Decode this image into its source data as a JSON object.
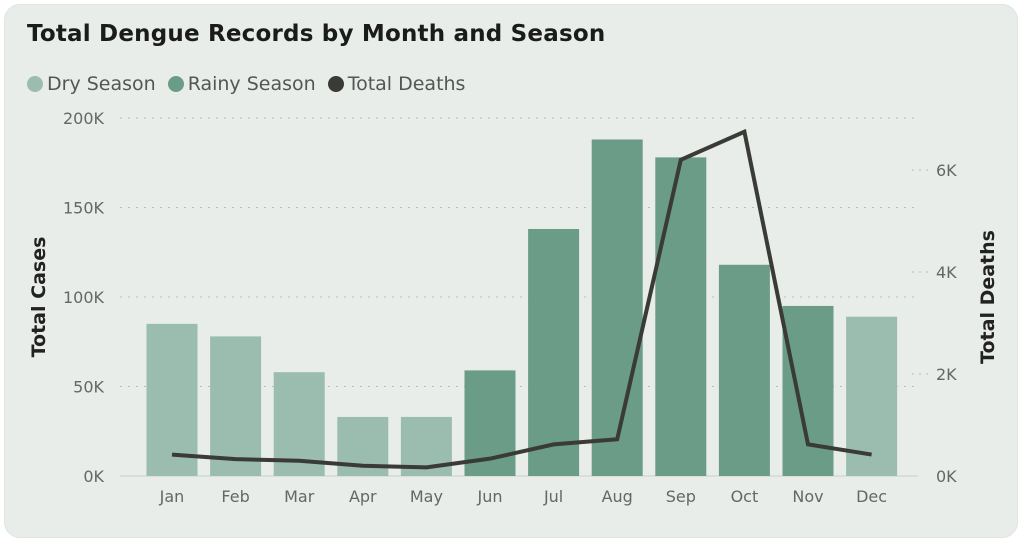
{
  "chart_data": {
    "type": "bar",
    "title": "Total Dengue Records by Month and Season",
    "categories": [
      "Jan",
      "Feb",
      "Mar",
      "Apr",
      "May",
      "Jun",
      "Jul",
      "Aug",
      "Sep",
      "Oct",
      "Nov",
      "Dec"
    ],
    "values": [
      85000,
      78000,
      58000,
      33000,
      33000,
      59000,
      138000,
      188000,
      178000,
      118000,
      95000,
      89000
    ],
    "season": [
      "Dry Season",
      "Dry Season",
      "Dry Season",
      "Dry Season",
      "Dry Season",
      "Rainy Season",
      "Rainy Season",
      "Rainy Season",
      "Rainy Season",
      "Rainy Season",
      "Rainy Season",
      "Dry Season"
    ],
    "legend": [
      {
        "name": "Dry Season",
        "color": "#9bbdaf"
      },
      {
        "name": "Rainy Season",
        "color": "#6a9c88"
      },
      {
        "name": "Total Deaths",
        "color": "#3a3a36"
      }
    ],
    "line_series": {
      "name": "Total Deaths",
      "values": [
        420,
        330,
        300,
        200,
        170,
        340,
        620,
        720,
        6200,
        6750,
        620,
        420
      ]
    },
    "ylabel": "Total Cases",
    "y2label": "Total Deaths",
    "ylim": [
      0,
      200000
    ],
    "y2lim": [
      0,
      7000
    ],
    "yticks": [
      0,
      50000,
      100000,
      150000,
      200000
    ],
    "ytick_labels": [
      "0K",
      "50K",
      "100K",
      "150K",
      "200K"
    ],
    "y2ticks": [
      0,
      2000,
      4000,
      6000
    ],
    "y2tick_labels": [
      "0K",
      "2K",
      "4K",
      "6K"
    ],
    "grid": true,
    "legend_position": "top-left"
  }
}
